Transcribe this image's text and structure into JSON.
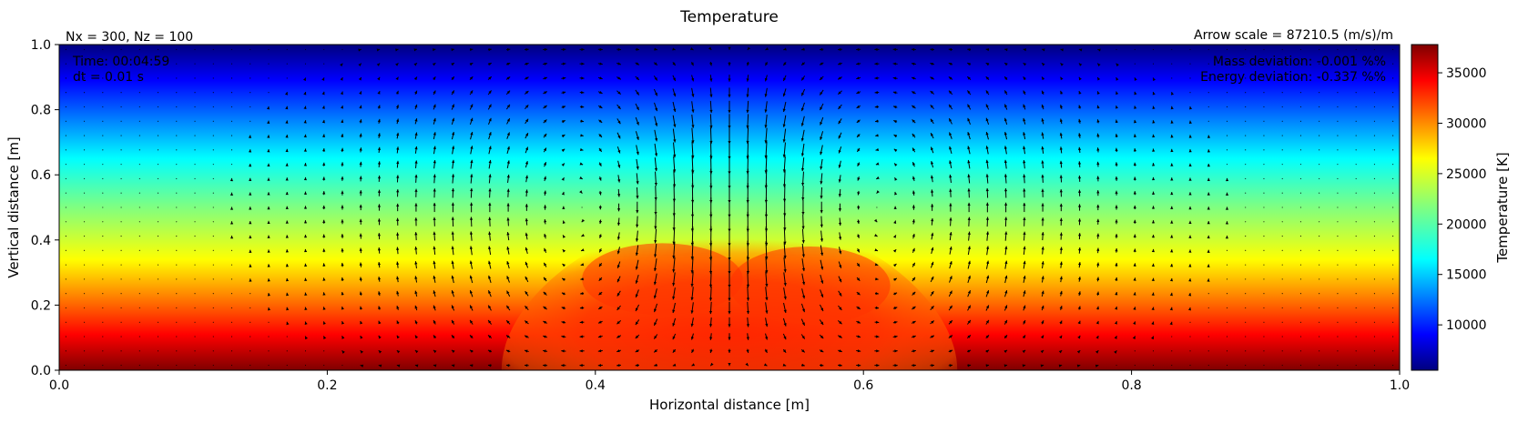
{
  "chart_data": {
    "type": "heatmap",
    "title": "Temperature",
    "xlabel": "Horizontal distance [m]",
    "ylabel": "Vertical distance [m]",
    "xlim": [
      0.0,
      1.0
    ],
    "ylim": [
      0.0,
      1.0
    ],
    "x_ticks": [
      "0.0",
      "0.2",
      "0.4",
      "0.6",
      "0.8",
      "1.0"
    ],
    "y_ticks": [
      "0.0",
      "0.2",
      "0.4",
      "0.6",
      "0.8",
      "1.0"
    ],
    "grid_info": "Nx = 300, Nz = 100",
    "arrow_scale": "Arrow scale = 87210.5 (m/s)/m",
    "time_text": "Time: 00:04:59",
    "dt_text": "dt = 0.01 s",
    "mass_deviation": "Mass deviation: -0.001 %%",
    "energy_deviation": "Energy deviation: -0.337 %%",
    "colorbar": {
      "label": "Temperature [K]",
      "range": [
        5500,
        37800
      ],
      "ticks": [
        10000,
        15000,
        20000,
        25000,
        30000,
        35000
      ],
      "tick_labels": [
        "10000",
        "15000",
        "20000",
        "25000",
        "30000",
        "35000"
      ],
      "colormap": "jet"
    },
    "field": {
      "background": "temperature decreases linearly from about 37800 K at z = 0.0 to about 5500 K at z = 1.0",
      "plume": {
        "center_x": 0.5,
        "top_z": 0.5,
        "peak_temperature": 32000
      },
      "vectors": "quiver field of velocity arrows on a regular grid, two counter-rotating convection cells centred near x = 0.4 and x = 0.6, strong upward flow at x = 0.5"
    }
  }
}
